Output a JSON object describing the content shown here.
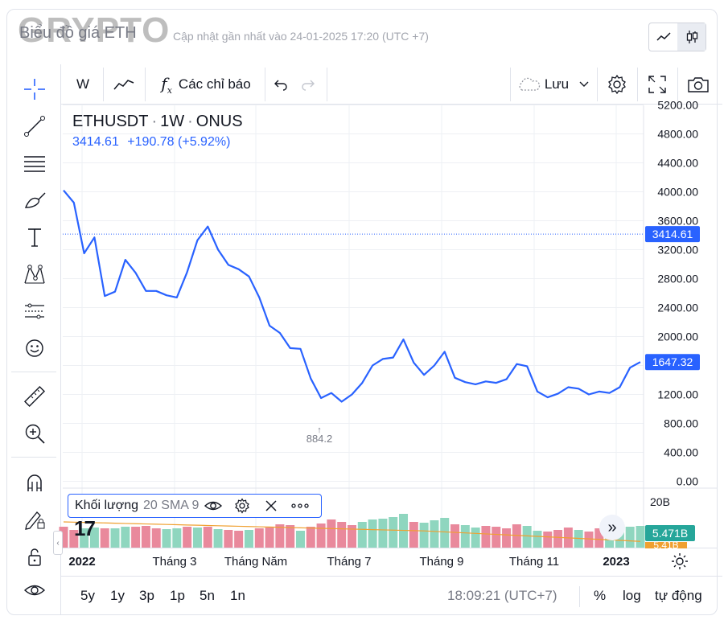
{
  "header": {
    "watermark": "GRYPTO",
    "title": "Biểu đồ giá ETH",
    "updated": "Cập nhật gần nhất vào 24-01-2025 17:20 (UTC +7)"
  },
  "toolbar": {
    "interval": "W",
    "indicators_label": "Các chỉ báo",
    "save_label": "Lưu"
  },
  "legend": {
    "symbol": "ETHUSDT",
    "interval": "1W",
    "exchange": "ONUS",
    "last": "3414.61",
    "change": "+190.78",
    "change_pct": "(+5.92%)"
  },
  "volume_legend": {
    "name": "Khối lượng",
    "params": "20 SMA 9"
  },
  "bottombar": {
    "ranges": [
      "5y",
      "1y",
      "3p",
      "1p",
      "5n",
      "1n"
    ],
    "clock": "18:09:21 (UTC+7)",
    "percent": "%",
    "log": "log",
    "auto": "tự động"
  },
  "colors": {
    "line": "#2962ff",
    "up_volume": "#8fd6bf",
    "down_volume": "#e9899c",
    "sma": "#f0a030",
    "volume_label": "#26a69a"
  },
  "icons": [
    "crosshair-icon",
    "trendline-icon",
    "fib-lines-icon",
    "brush-icon",
    "text-icon",
    "pattern-icon",
    "prediction-icon",
    "emoji-icon",
    "ruler-icon",
    "zoom-in-icon",
    "magnet-icon",
    "lock-drawing-icon",
    "lock-icon",
    "eye-icon",
    "undo-icon",
    "redo-icon",
    "settings-icon",
    "fullscreen-icon",
    "camera-icon"
  ],
  "chart_data": {
    "type": "line",
    "series": [
      {
        "values": [
          4020,
          3850,
          3150,
          3370,
          2560,
          2620,
          3060,
          2880,
          2630,
          2630,
          2570,
          2540,
          2890,
          3330,
          3520,
          3200,
          2990,
          2930,
          2830,
          2540,
          2150,
          2050,
          1840,
          1830,
          1420,
          1150,
          1220,
          1100,
          1200,
          1360,
          1600,
          1690,
          1710,
          1960,
          1640,
          1470,
          1600,
          1790,
          1430,
          1370,
          1340,
          1380,
          1360,
          1410,
          1620,
          1590,
          1240,
          1160,
          1210,
          1300,
          1280,
          1200,
          1240,
          1220,
          1300,
          1570,
          1647.32
        ]
      }
    ],
    "volume": {
      "color_flags": [
        "d",
        "d",
        "u",
        "u",
        "d",
        "u",
        "u",
        "d",
        "d",
        "d",
        "u",
        "u",
        "d",
        "u",
        "d",
        "u",
        "d",
        "d",
        "u",
        "d",
        "d",
        "d",
        "d",
        "u",
        "d",
        "d",
        "d",
        "d",
        "d",
        "u",
        "u",
        "u",
        "u",
        "u",
        "d",
        "u",
        "u",
        "u",
        "d",
        "u",
        "u",
        "d",
        "d",
        "d",
        "d",
        "u",
        "u",
        "d",
        "d",
        "d",
        "u",
        "d",
        "d",
        "u",
        "u",
        "u",
        "u"
      ],
      "last_label": "5.471B",
      "sma_label": "5.41B",
      "axis_top_label": "20B"
    },
    "last_price_label": "3414.61",
    "last_close_label": "1647.32",
    "low_annotation": "884.2",
    "y_ticks": [
      "5200.00",
      "4800.00",
      "4400.00",
      "4000.00",
      "3600.00",
      "3200.00",
      "2800.00",
      "2400.00",
      "2000.00",
      "1600.00",
      "1200.00",
      "800.00",
      "400.00",
      "0.00"
    ],
    "ylim": [
      0,
      5200
    ],
    "x_ticks": [
      "2022",
      "Tháng 3",
      "Tháng Năm",
      "Tháng 7",
      "Tháng 9",
      "Tháng 11",
      "2023"
    ],
    "grid": true
  }
}
